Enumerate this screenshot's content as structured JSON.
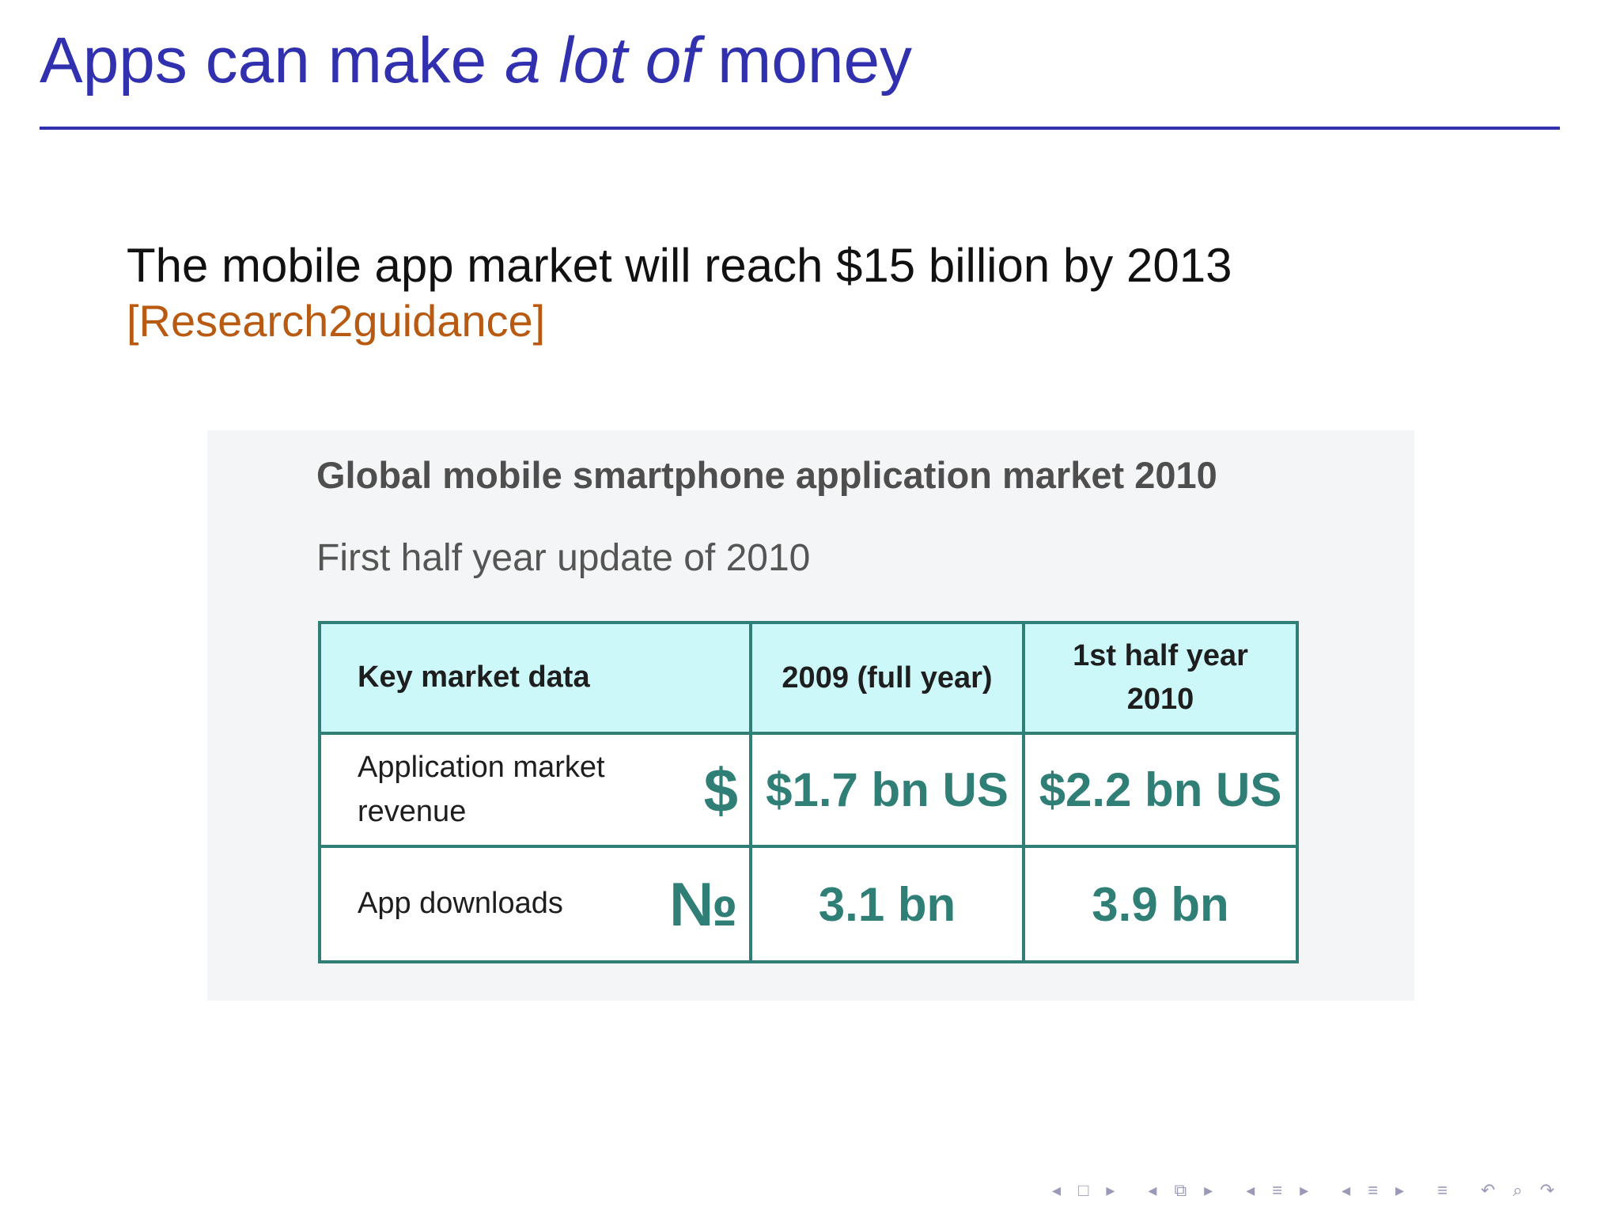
{
  "slide": {
    "title_part1": "Apps can make ",
    "title_emphasis": "a lot of",
    "title_part2": " money",
    "statement": "The mobile app market will reach $15 billion by 2013",
    "citation": "[Research2guidance]",
    "title_color": "#3131b0",
    "citation_color": "#b85a12"
  },
  "figure": {
    "title": "Global mobile smartphone application market 2010",
    "subtitle": "First half year update of 2010",
    "table": {
      "headers": [
        "Key market data",
        "2009 (full year)",
        "1st half year 2010"
      ],
      "rows": [
        {
          "label": "Application market revenue",
          "icon": "$",
          "icon_name": "dollar-icon",
          "values": [
            "$1.7 bn US",
            "$2.2 bn US"
          ]
        },
        {
          "label": "App downloads",
          "icon": "№",
          "icon_name": "numero-icon",
          "values": [
            "3.1 bn",
            "3.9 bn"
          ]
        }
      ]
    },
    "header_bg": "#cdf8fa",
    "accent_color": "#2f7f77"
  },
  "nav": {
    "icons": [
      "prev-frame-icon",
      "frame-icon",
      "next-frame-icon",
      "prev-subsection-icon",
      "subsection-icon",
      "next-subsection-icon",
      "prev-section-icon",
      "section-icon",
      "next-section-icon",
      "prev-page-icon",
      "page-icon",
      "next-page-icon",
      "outline-icon",
      "back-icon",
      "search-icon",
      "forward-icon"
    ]
  }
}
